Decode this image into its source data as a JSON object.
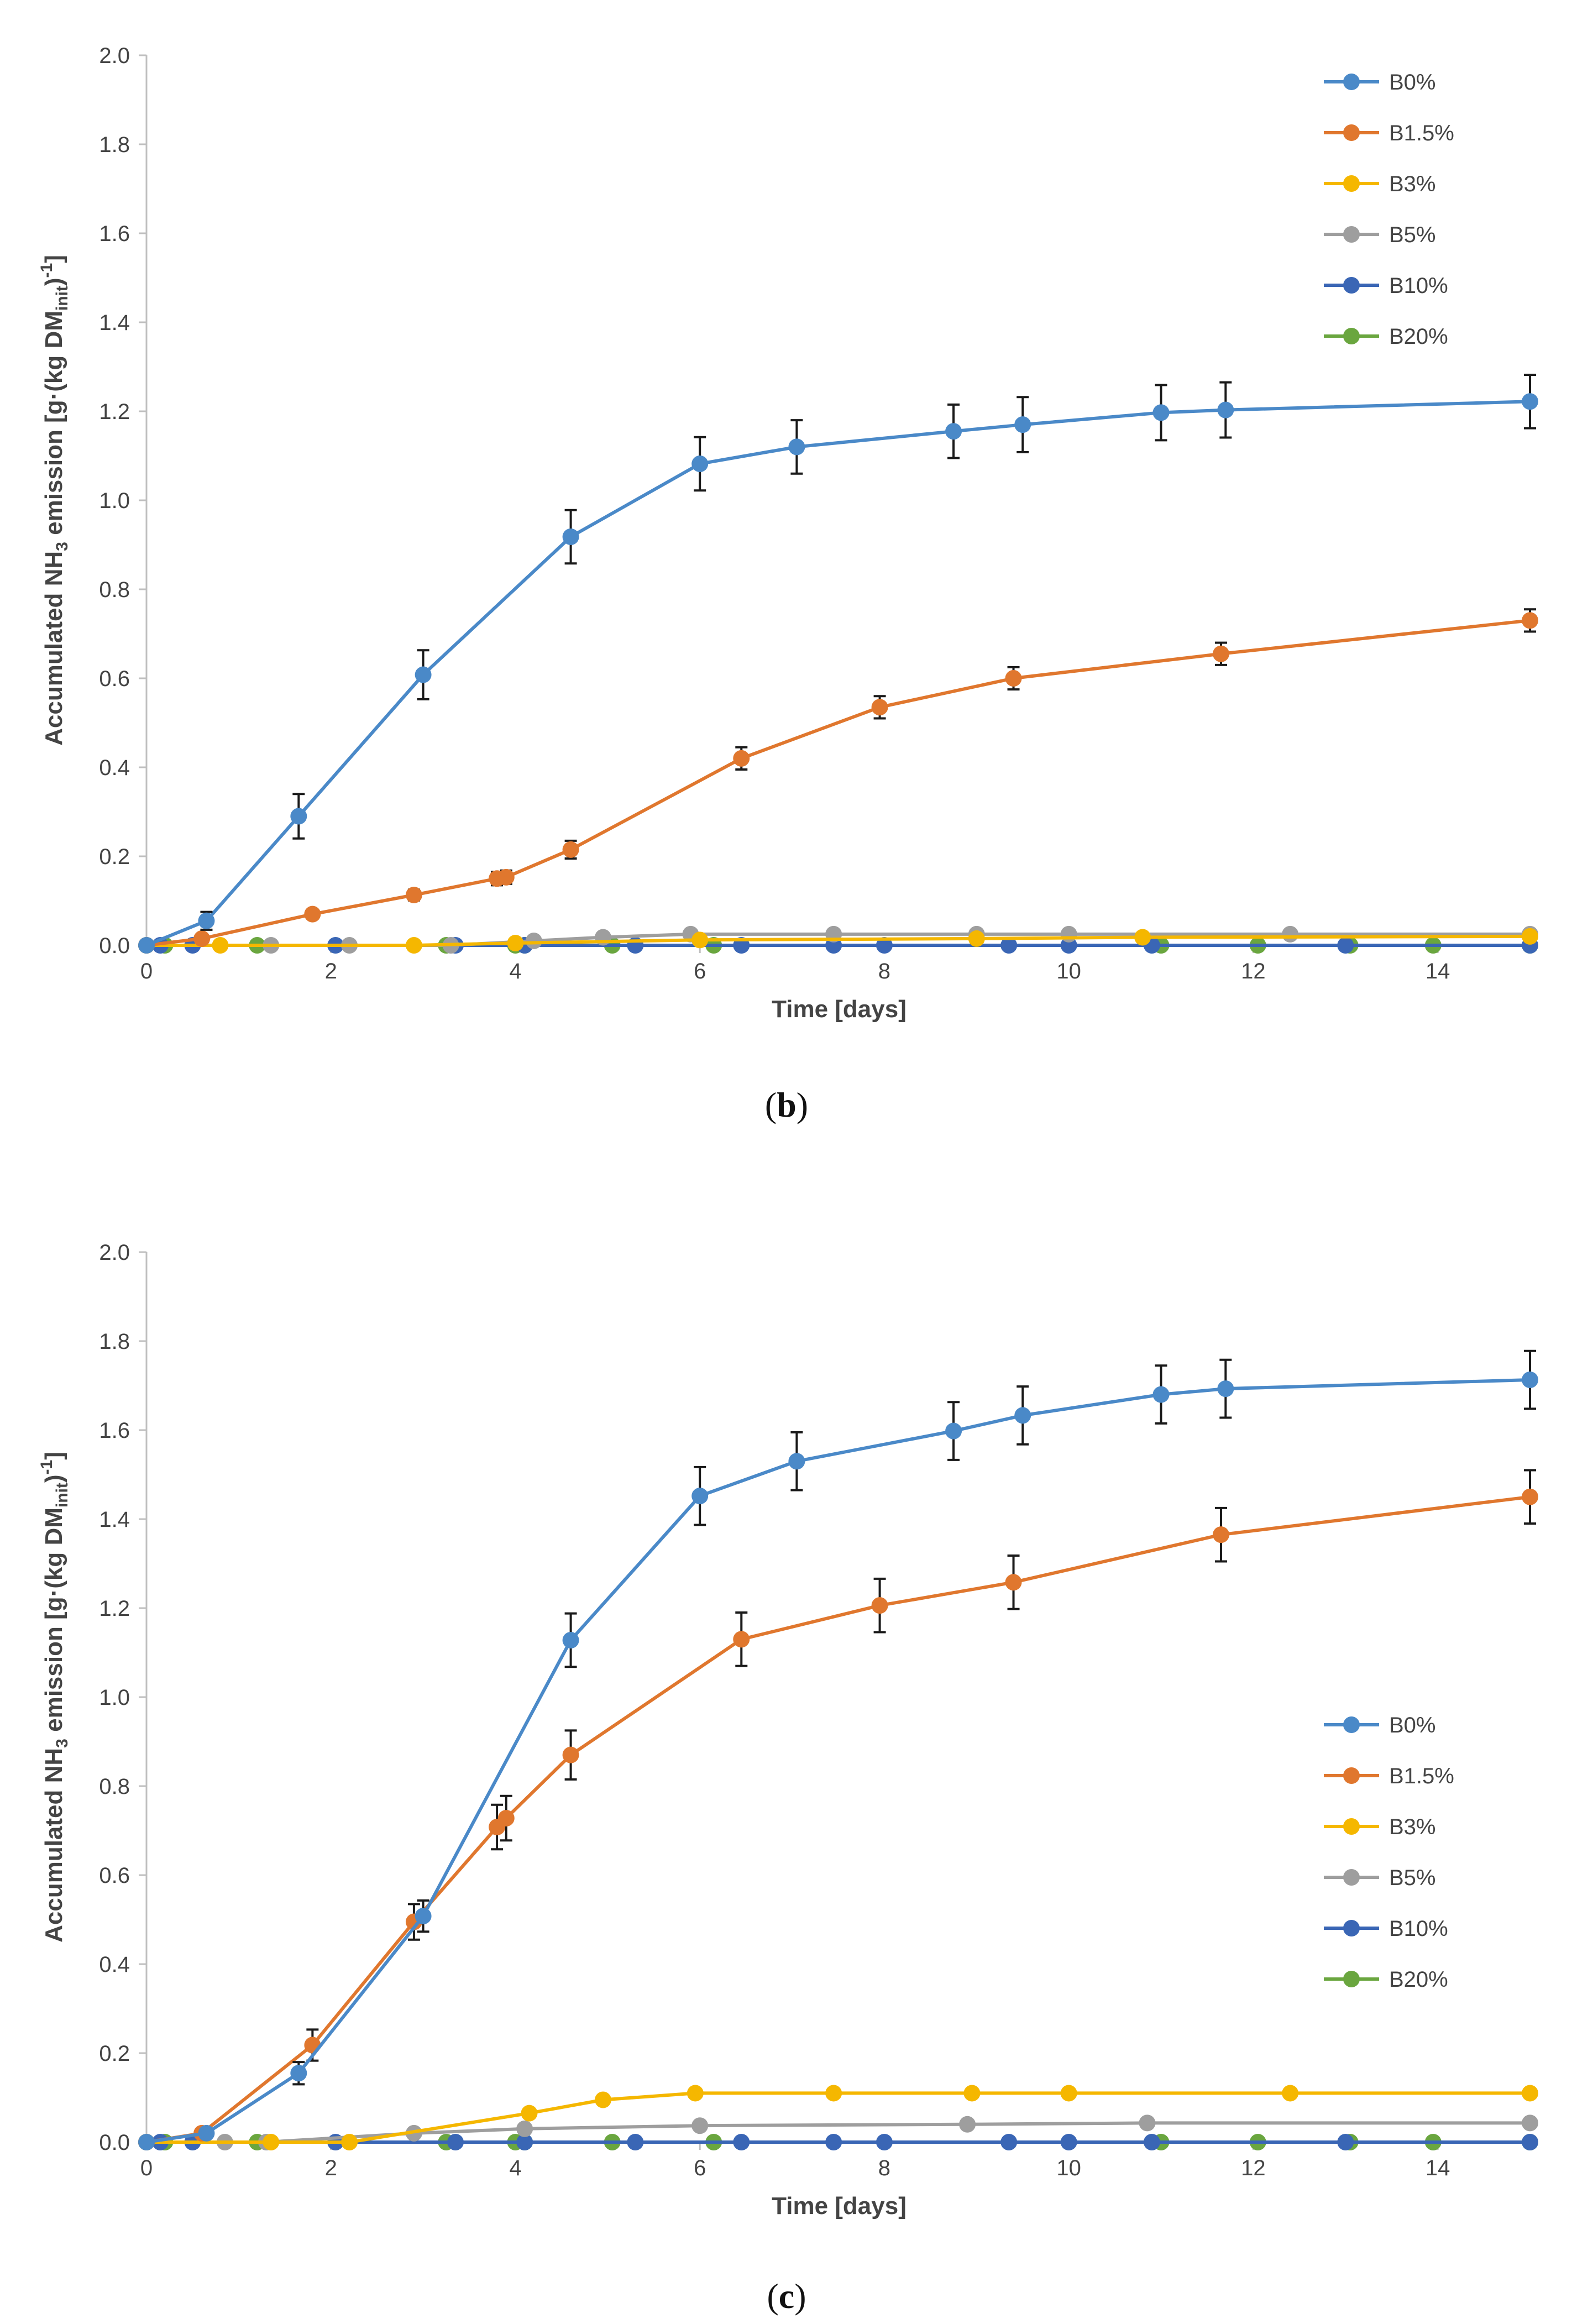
{
  "chart_data": [
    {
      "type": "line",
      "caption_letter": "b",
      "xlabel": "Time [days]",
      "ylabel": "Accumulated NH3 emission [g·(kg DMinit)-1]",
      "ylabel_parts": {
        "main": "Accumulated NH",
        "sub3": "3",
        "mid": " emission [g·(kg DM",
        "subinit": "init",
        "close": ")",
        "sup": "-1",
        "end": "]"
      },
      "xlim": [
        0,
        15
      ],
      "ylim": [
        0,
        2
      ],
      "xticks": [
        "0",
        "2",
        "4",
        "6",
        "8",
        "10",
        "12",
        "14"
      ],
      "yticks": [
        "0.0",
        "0.2",
        "0.4",
        "0.6",
        "0.8",
        "1.0",
        "1.2",
        "1.4",
        "1.6",
        "1.8",
        "2.0"
      ],
      "legend_position": "top-right",
      "series": [
        {
          "name": "B0%",
          "color": "#4a89c8",
          "x": [
            0,
            0.65,
            1.65,
            3.0,
            4.6,
            6.0,
            7.05,
            8.75,
            9.5,
            11.0,
            11.7,
            15.0
          ],
          "y": [
            0,
            0.055,
            0.29,
            0.608,
            0.918,
            1.082,
            1.12,
            1.155,
            1.17,
            1.197,
            1.203,
            1.222
          ],
          "err": [
            0,
            0.02,
            0.05,
            0.055,
            0.06,
            0.06,
            0.06,
            0.06,
            0.062,
            0.062,
            0.062,
            0.06
          ]
        },
        {
          "name": "B1.5%",
          "color": "#e0772e",
          "x": [
            0,
            0.6,
            1.8,
            2.9,
            3.8,
            3.9,
            4.6,
            6.45,
            7.95,
            9.4,
            11.65,
            15.0
          ],
          "y": [
            0,
            0.015,
            0.07,
            0.113,
            0.15,
            0.153,
            0.215,
            0.42,
            0.535,
            0.6,
            0.655,
            0.73
          ],
          "err": [
            0,
            0.005,
            0.01,
            0.012,
            0.015,
            0.015,
            0.02,
            0.025,
            0.025,
            0.025,
            0.025,
            0.025
          ]
        },
        {
          "name": "B3%",
          "color": "#f5b700",
          "x": [
            0,
            0.8,
            2.9,
            4.0,
            6.0,
            9.0,
            10.8,
            15.0
          ],
          "y": [
            0,
            0,
            0,
            0.005,
            0.012,
            0.015,
            0.018,
            0.02
          ],
          "err": []
        },
        {
          "name": "B5%",
          "color": "#9e9e9e",
          "x": [
            0,
            1.35,
            2.2,
            3.3,
            4.2,
            4.95,
            5.9,
            7.45,
            9.0,
            10.0,
            12.4,
            15.0
          ],
          "y": [
            0,
            0,
            0,
            0,
            0.01,
            0.018,
            0.025,
            0.025,
            0.025,
            0.025,
            0.025,
            0.025
          ],
          "err": []
        },
        {
          "name": "B10%",
          "color": "#3a66b5",
          "x": [
            0,
            0.15,
            0.5,
            2.05,
            3.35,
            4.1,
            5.3,
            6.45,
            7.45,
            8.0,
            9.35,
            10.0,
            10.9,
            13.0,
            15.0
          ],
          "y": [
            0,
            0,
            0,
            0,
            0,
            0,
            0,
            0,
            0,
            0,
            0,
            0,
            0,
            0,
            0
          ],
          "err": []
        },
        {
          "name": "B20%",
          "color": "#6aa63f",
          "x": [
            0,
            0.2,
            1.2,
            3.25,
            4.0,
            4.1,
            5.05,
            6.15,
            11.0,
            12.05,
            13.05,
            13.95,
            15.0
          ],
          "y": [
            0,
            0,
            0,
            0,
            0,
            0,
            0,
            0,
            0,
            0,
            0,
            0,
            0
          ],
          "err": []
        }
      ]
    },
    {
      "type": "line",
      "caption_letter": "c",
      "xlabel": "Time [days]",
      "ylabel": "Accumulated NH3 emission [g·(kg DMinit)-1]",
      "ylabel_parts": {
        "main": "Accumulated NH",
        "sub3": "3",
        "mid": " emission [g·(kg DM",
        "subinit": "init",
        "close": ")",
        "sup": "-1",
        "end": "]"
      },
      "xlim": [
        0,
        15
      ],
      "ylim": [
        0,
        2
      ],
      "xticks": [
        "0",
        "2",
        "4",
        "6",
        "8",
        "10",
        "12",
        "14"
      ],
      "yticks": [
        "0.0",
        "0.2",
        "0.4",
        "0.6",
        "0.8",
        "1.0",
        "1.2",
        "1.4",
        "1.6",
        "1.8",
        "2.0"
      ],
      "legend_position": "center-right",
      "series": [
        {
          "name": "B0%",
          "color": "#4a89c8",
          "x": [
            0,
            0.65,
            1.65,
            3.0,
            4.6,
            6.0,
            7.05,
            8.75,
            9.5,
            11.0,
            11.7,
            15.0
          ],
          "y": [
            0,
            0.02,
            0.155,
            0.508,
            1.128,
            1.452,
            1.53,
            1.598,
            1.633,
            1.68,
            1.693,
            1.713
          ],
          "err": [
            0,
            0.01,
            0.025,
            0.035,
            0.06,
            0.065,
            0.065,
            0.065,
            0.065,
            0.065,
            0.065,
            0.065
          ]
        },
        {
          "name": "B1.5%",
          "color": "#e0772e",
          "x": [
            0,
            0.6,
            1.8,
            2.9,
            3.8,
            3.9,
            4.6,
            6.45,
            7.95,
            9.4,
            11.65,
            15.0
          ],
          "y": [
            0,
            0.02,
            0.218,
            0.495,
            0.708,
            0.728,
            0.87,
            1.13,
            1.206,
            1.258,
            1.365,
            1.45
          ],
          "err": [
            0,
            0.01,
            0.035,
            0.04,
            0.05,
            0.05,
            0.055,
            0.06,
            0.06,
            0.06,
            0.06,
            0.06
          ]
        },
        {
          "name": "B3%",
          "color": "#f5b700",
          "x": [
            0,
            1.35,
            2.2,
            4.15,
            4.95,
            5.95,
            7.45,
            8.95,
            10.0,
            12.4,
            15.0
          ],
          "y": [
            0,
            0,
            0,
            0.065,
            0.095,
            0.11,
            0.11,
            0.11,
            0.11,
            0.11,
            0.11
          ],
          "err": [
            0,
            0,
            0,
            0.01,
            0,
            0,
            0,
            0,
            0,
            0,
            0
          ]
        },
        {
          "name": "B5%",
          "color": "#9e9e9e",
          "x": [
            0,
            0.85,
            1.3,
            2.9,
            4.1,
            6.0,
            8.9,
            10.85,
            15.0
          ],
          "y": [
            0,
            0,
            0,
            0.02,
            0.03,
            0.037,
            0.04,
            0.043,
            0.043
          ],
          "err": []
        },
        {
          "name": "B10%",
          "color": "#3a66b5",
          "x": [
            0,
            0.15,
            0.5,
            2.05,
            3.35,
            4.1,
            5.3,
            6.45,
            7.45,
            8.0,
            9.35,
            10.0,
            10.9,
            13.0,
            15.0
          ],
          "y": [
            0,
            0,
            0,
            0,
            0,
            0,
            0,
            0,
            0,
            0,
            0,
            0,
            0,
            0,
            0
          ],
          "err": []
        },
        {
          "name": "B20%",
          "color": "#6aa63f",
          "x": [
            0,
            0.2,
            1.2,
            3.25,
            4.0,
            4.1,
            5.05,
            6.15,
            11.0,
            12.05,
            13.05,
            13.95,
            15.0
          ],
          "y": [
            0,
            0,
            0,
            0,
            0,
            0,
            0,
            0,
            0,
            0,
            0,
            0,
            0
          ],
          "err": []
        }
      ]
    }
  ]
}
